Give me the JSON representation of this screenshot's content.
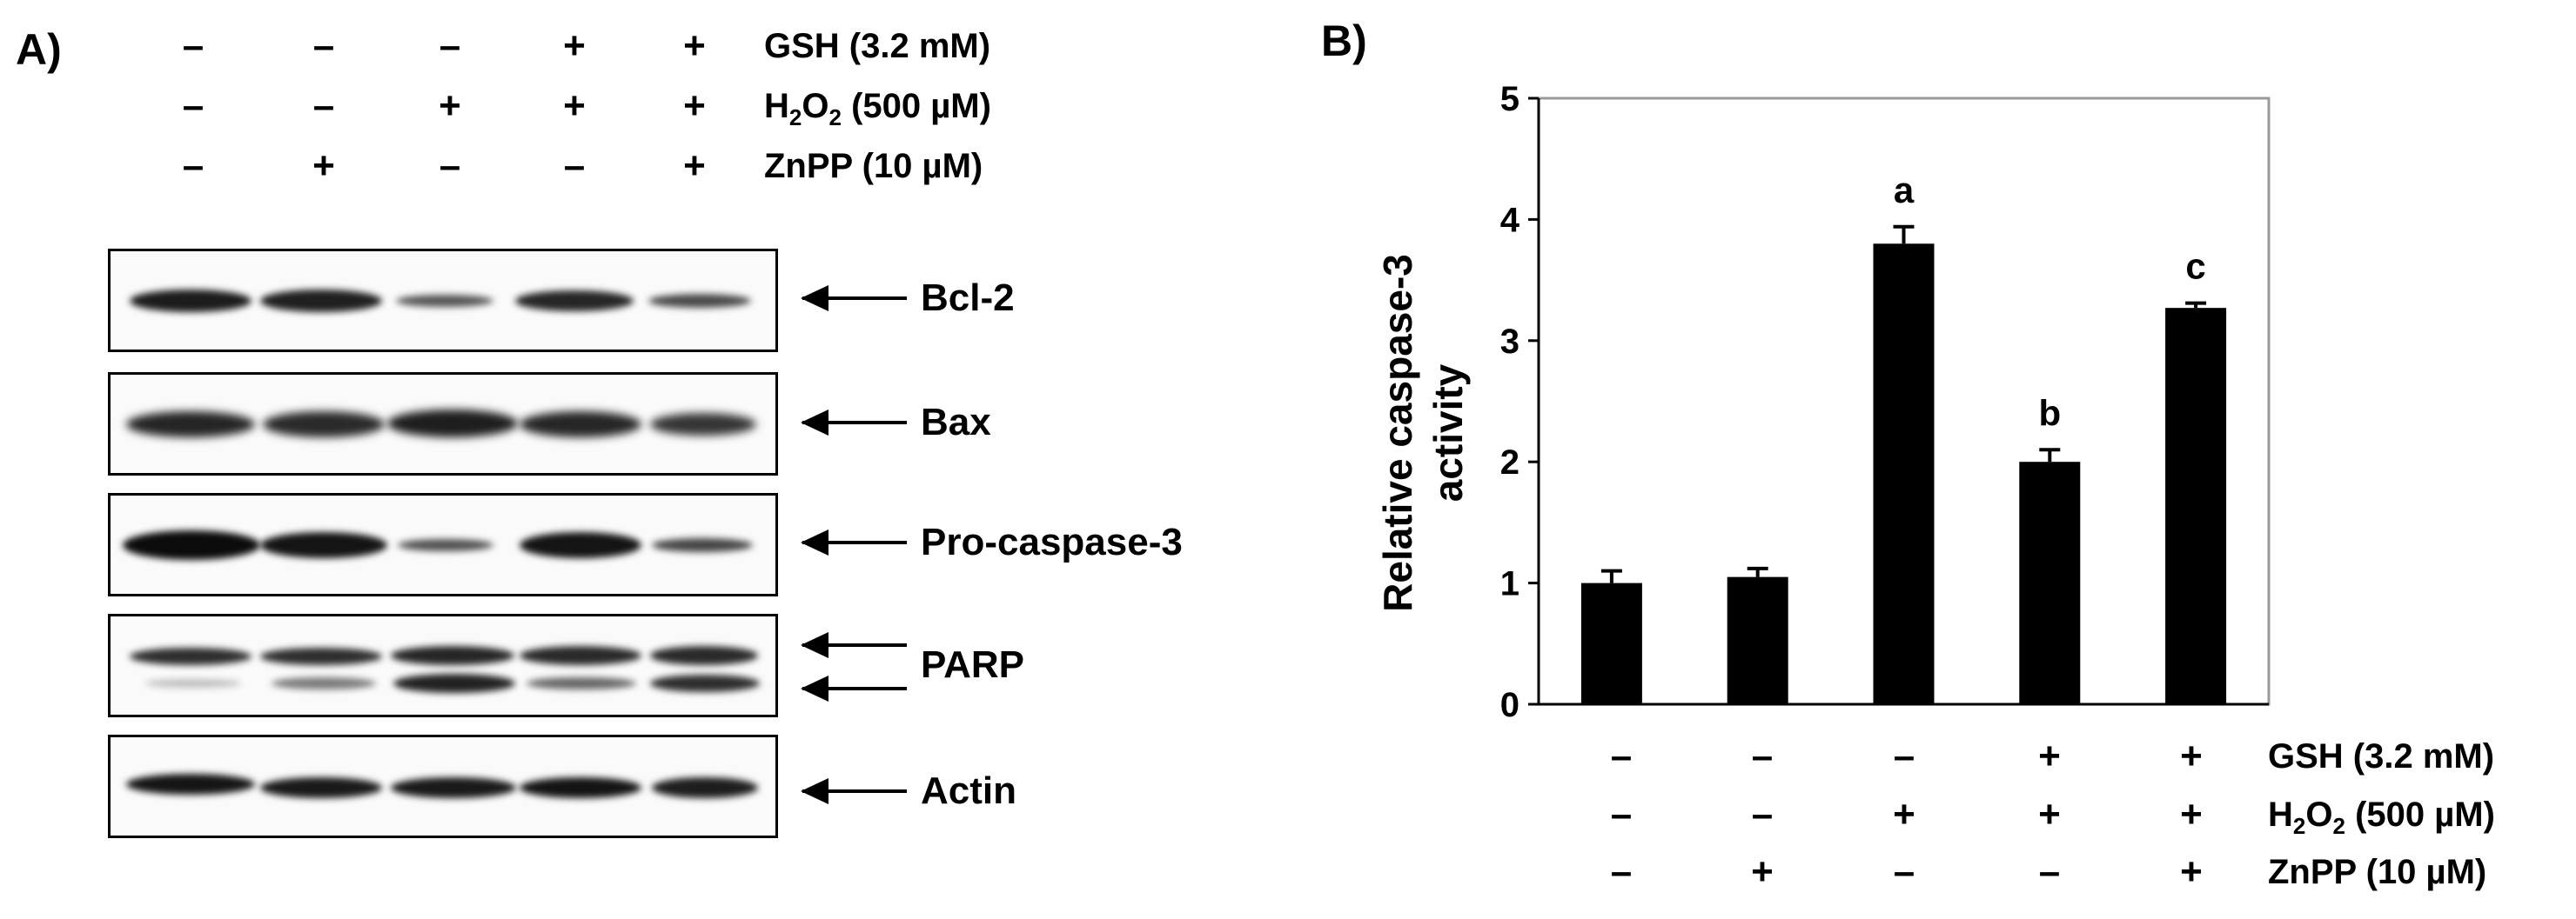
{
  "panel_a": {
    "label": "A)",
    "treatments": [
      {
        "label": "GSH (3.2 mM)",
        "signs": [
          "–",
          "–",
          "–",
          "+",
          "+"
        ]
      },
      {
        "label_main": "H",
        "sub1": "2",
        "label_mid": "O",
        "sub2": "2",
        "label_rest": " (500 µM)",
        "signs": [
          "–",
          "–",
          "+",
          "+",
          "+"
        ]
      },
      {
        "label": "ZnPP (10 µM)",
        "signs": [
          "–",
          "+",
          "–",
          "–",
          "+"
        ]
      }
    ],
    "blots": [
      {
        "protein": "Bcl-2"
      },
      {
        "protein": "Bax"
      },
      {
        "protein": "Pro-caspase-3"
      },
      {
        "protein": "PARP"
      },
      {
        "protein": "Actin"
      }
    ]
  },
  "panel_b": {
    "label": "B)",
    "treatments": [
      {
        "label": "GSH (3.2 mM)",
        "signs": [
          "–",
          "–",
          "–",
          "+",
          "+"
        ]
      },
      {
        "label_main": "H",
        "sub1": "2",
        "label_mid": "O",
        "sub2": "2",
        "label_rest": " (500 µM)",
        "signs": [
          "–",
          "–",
          "+",
          "+",
          "+"
        ]
      },
      {
        "label": "ZnPP (10 µM)",
        "signs": [
          "–",
          "+",
          "–",
          "–",
          "+"
        ]
      }
    ]
  },
  "chart_data": {
    "type": "bar",
    "categories": [
      "1",
      "2",
      "3",
      "4",
      "5"
    ],
    "values": [
      1.0,
      1.05,
      3.8,
      2.0,
      3.27
    ],
    "errors": [
      0.1,
      0.07,
      0.14,
      0.1,
      0.04
    ],
    "annotations": [
      "",
      "",
      "a",
      "b",
      "c"
    ],
    "ylabel_line1": "Relative caspase-3",
    "ylabel_line2": "activity",
    "ylim": [
      0,
      5
    ],
    "yticks": [
      "0",
      "1",
      "2",
      "3",
      "4",
      "5"
    ],
    "bar_color": "#000000",
    "grid": false
  }
}
